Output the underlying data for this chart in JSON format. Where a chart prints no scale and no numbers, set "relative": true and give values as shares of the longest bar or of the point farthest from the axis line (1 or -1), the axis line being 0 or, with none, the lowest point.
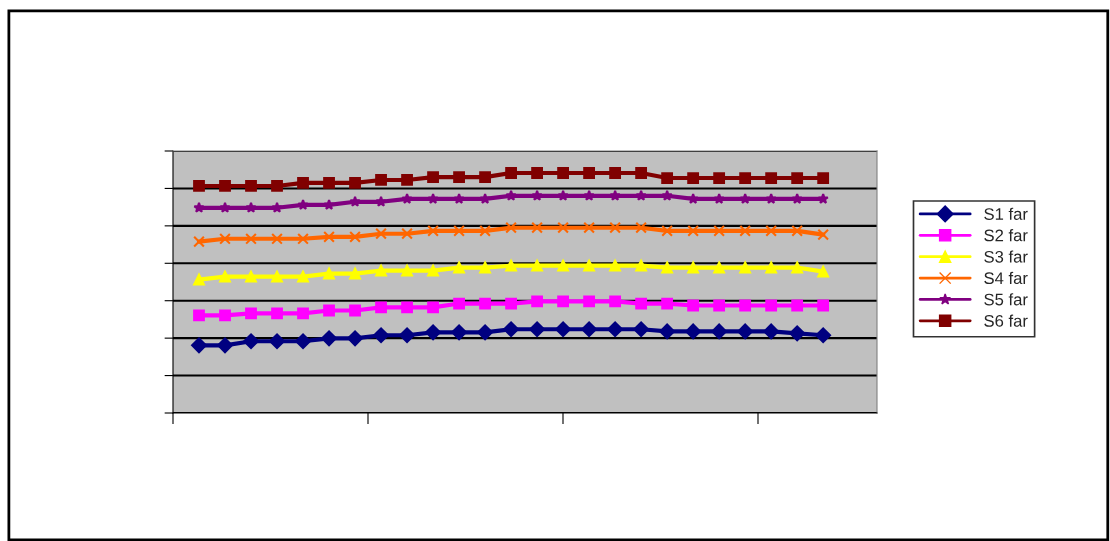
{
  "chart_data": {
    "type": "line",
    "relative": true,
    "grid": "y",
    "legend": "right",
    "categories": [
      null,
      null,
      null,
      null,
      null,
      null,
      null,
      null,
      null,
      null,
      null,
      null,
      null,
      null,
      null,
      null,
      null,
      null,
      null,
      null,
      null,
      null,
      null,
      null,
      null
    ],
    "series": [
      {
        "name": "S1 far",
        "color": "#000080",
        "marker": "diamond",
        "values": [
          0.282,
          0.282,
          0.299,
          0.299,
          0.299,
          0.311,
          0.311,
          0.324,
          0.324,
          0.336,
          0.336,
          0.336,
          0.349,
          0.349,
          0.349,
          0.349,
          0.349,
          0.349,
          0.34,
          0.34,
          0.34,
          0.34,
          0.34,
          0.332,
          0.324
        ]
      },
      {
        "name": "S2 far",
        "color": "#ff00ff",
        "marker": "square",
        "values": [
          0.407,
          0.407,
          0.415,
          0.415,
          0.415,
          0.427,
          0.427,
          0.44,
          0.44,
          0.44,
          0.456,
          0.456,
          0.456,
          0.465,
          0.465,
          0.465,
          0.465,
          0.456,
          0.456,
          0.448,
          0.448,
          0.448,
          0.448,
          0.448,
          0.448
        ]
      },
      {
        "name": "S3 far",
        "color": "#ffff00",
        "marker": "triangle",
        "values": [
          0.556,
          0.568,
          0.568,
          0.568,
          0.568,
          0.581,
          0.581,
          0.593,
          0.593,
          0.593,
          0.606,
          0.606,
          0.614,
          0.614,
          0.614,
          0.614,
          0.614,
          0.614,
          0.606,
          0.606,
          0.606,
          0.606,
          0.606,
          0.606,
          0.589
        ]
      },
      {
        "name": "S4 far",
        "color": "#ff6600",
        "marker": "cross",
        "values": [
          0.714,
          0.726,
          0.726,
          0.726,
          0.726,
          0.734,
          0.734,
          0.747,
          0.747,
          0.759,
          0.759,
          0.759,
          0.772,
          0.772,
          0.772,
          0.772,
          0.772,
          0.772,
          0.759,
          0.759,
          0.759,
          0.759,
          0.759,
          0.759,
          0.743
        ]
      },
      {
        "name": "S5 far",
        "color": "#800080",
        "marker": "star",
        "values": [
          0.855,
          0.855,
          0.855,
          0.855,
          0.867,
          0.867,
          0.88,
          0.88,
          0.892,
          0.892,
          0.892,
          0.892,
          0.905,
          0.905,
          0.905,
          0.905,
          0.905,
          0.905,
          0.905,
          0.892,
          0.892,
          0.892,
          0.892,
          0.892,
          0.892
        ]
      },
      {
        "name": "S6 far",
        "color": "#800000",
        "marker": "square",
        "values": [
          0.946,
          0.946,
          0.946,
          0.946,
          0.959,
          0.959,
          0.959,
          0.971,
          0.971,
          0.983,
          0.983,
          0.983,
          1.0,
          1.0,
          1.0,
          1.0,
          1.0,
          1.0,
          0.979,
          0.979,
          0.979,
          0.979,
          0.979,
          0.979,
          0.979
        ]
      }
    ]
  }
}
